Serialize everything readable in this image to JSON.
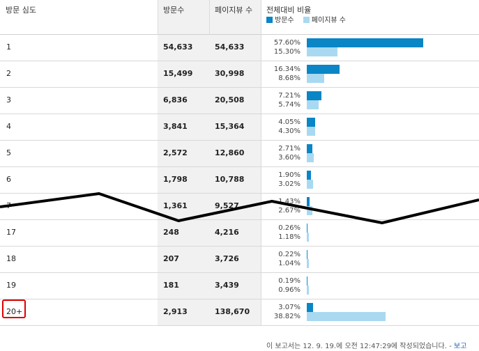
{
  "columns": {
    "depth": "방문 심도",
    "visits": "방문수",
    "pageviews": "페이지뷰 수",
    "ratio": "전체대비 비율"
  },
  "legend": {
    "visits": "방문수",
    "pageviews": "페이지뷰 수"
  },
  "colors": {
    "visits_bar": "#0a85c6",
    "pageviews_bar": "#a8d9f1",
    "highlight": "#d90000"
  },
  "rows": [
    {
      "depth": "1",
      "visits": "54,633",
      "pageviews": "54,633",
      "visits_pct": "57.60%",
      "pv_pct": "15.30%",
      "visits_frac": 0.576,
      "pv_frac": 0.153
    },
    {
      "depth": "2",
      "visits": "15,499",
      "pageviews": "30,998",
      "visits_pct": "16.34%",
      "pv_pct": "8.68%",
      "visits_frac": 0.1634,
      "pv_frac": 0.0868
    },
    {
      "depth": "3",
      "visits": "6,836",
      "pageviews": "20,508",
      "visits_pct": "7.21%",
      "pv_pct": "5.74%",
      "visits_frac": 0.0721,
      "pv_frac": 0.0574
    },
    {
      "depth": "4",
      "visits": "3,841",
      "pageviews": "15,364",
      "visits_pct": "4.05%",
      "pv_pct": "4.30%",
      "visits_frac": 0.0405,
      "pv_frac": 0.043
    },
    {
      "depth": "5",
      "visits": "2,572",
      "pageviews": "12,860",
      "visits_pct": "2.71%",
      "pv_pct": "3.60%",
      "visits_frac": 0.0271,
      "pv_frac": 0.036
    },
    {
      "depth": "6",
      "visits": "1,798",
      "pageviews": "10,788",
      "visits_pct": "1.90%",
      "pv_pct": "3.02%",
      "visits_frac": 0.019,
      "pv_frac": 0.0302
    },
    {
      "depth": "7",
      "visits": "1,361",
      "pageviews": "9,527",
      "visits_pct": "1.43%",
      "pv_pct": "2.67%",
      "visits_frac": 0.0143,
      "pv_frac": 0.0267
    },
    {
      "depth": "17",
      "visits": "248",
      "pageviews": "4,216",
      "visits_pct": "0.26%",
      "pv_pct": "1.18%",
      "visits_frac": 0.0026,
      "pv_frac": 0.0118
    },
    {
      "depth": "18",
      "visits": "207",
      "pageviews": "3,726",
      "visits_pct": "0.22%",
      "pv_pct": "1.04%",
      "visits_frac": 0.0022,
      "pv_frac": 0.0104
    },
    {
      "depth": "19",
      "visits": "181",
      "pageviews": "3,439",
      "visits_pct": "0.19%",
      "pv_pct": "0.96%",
      "visits_frac": 0.0019,
      "pv_frac": 0.0096
    },
    {
      "depth": "20+",
      "visits": "2,913",
      "pageviews": "138,670",
      "visits_pct": "3.07%",
      "pv_pct": "38.82%",
      "visits_frac": 0.0307,
      "pv_frac": 0.3882
    }
  ],
  "footer": {
    "text": "이 보고서는 12. 9. 19.에 오전 12:47:29에 작성되었습니다. -",
    "link": "보고"
  }
}
